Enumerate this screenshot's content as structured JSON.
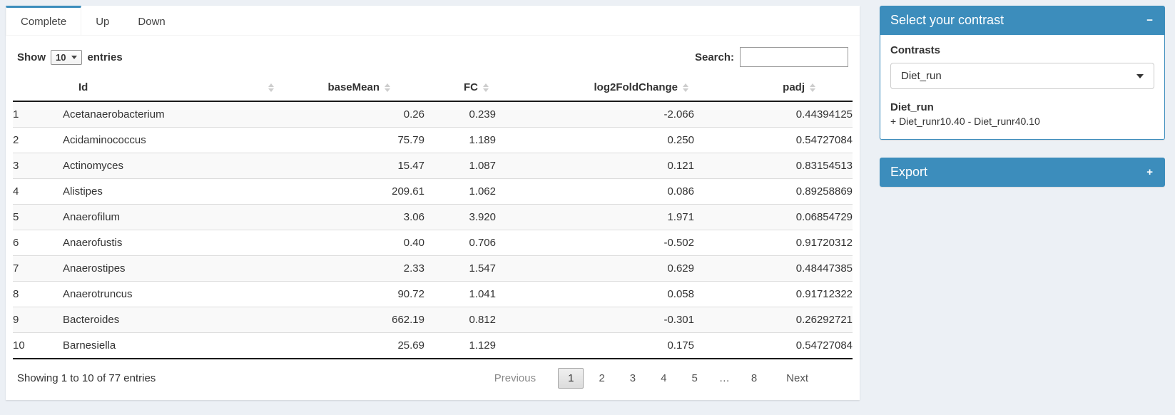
{
  "colors": {
    "accent": "#3c8dbc",
    "page_bg": "#ecf0f5"
  },
  "tabs": [
    {
      "label": "Complete",
      "active": true
    },
    {
      "label": "Up",
      "active": false
    },
    {
      "label": "Down",
      "active": false
    }
  ],
  "controls": {
    "show_label": "Show",
    "page_length": "10",
    "entries_label": "entries",
    "search_label": "Search:",
    "search_value": ""
  },
  "table": {
    "columns": [
      {
        "label": "",
        "sortable": false
      },
      {
        "label": "Id",
        "sortable": true
      },
      {
        "label": "baseMean",
        "sortable": true
      },
      {
        "label": "FC",
        "sortable": true
      },
      {
        "label": "log2FoldChange",
        "sortable": true
      },
      {
        "label": "padj",
        "sortable": true
      }
    ],
    "rows": [
      [
        "1",
        "Acetanaerobacterium",
        "0.26",
        "0.239",
        "-2.066",
        "0.44394125"
      ],
      [
        "2",
        "Acidaminococcus",
        "75.79",
        "1.189",
        "0.250",
        "0.54727084"
      ],
      [
        "3",
        "Actinomyces",
        "15.47",
        "1.087",
        "0.121",
        "0.83154513"
      ],
      [
        "4",
        "Alistipes",
        "209.61",
        "1.062",
        "0.086",
        "0.89258869"
      ],
      [
        "5",
        "Anaerofilum",
        "3.06",
        "3.920",
        "1.971",
        "0.06854729"
      ],
      [
        "6",
        "Anaerofustis",
        "0.40",
        "0.706",
        "-0.502",
        "0.91720312"
      ],
      [
        "7",
        "Anaerostipes",
        "2.33",
        "1.547",
        "0.629",
        "0.48447385"
      ],
      [
        "8",
        "Anaerotruncus",
        "90.72",
        "1.041",
        "0.058",
        "0.91712322"
      ],
      [
        "9",
        "Bacteroides",
        "662.19",
        "0.812",
        "-0.301",
        "0.26292721"
      ],
      [
        "10",
        "Barnesiella",
        "25.69",
        "1.129",
        "0.175",
        "0.54727084"
      ]
    ]
  },
  "footer": {
    "info": "Showing 1 to 10 of 77 entries",
    "pagination": {
      "buttons": [
        "Previous",
        "1",
        "2",
        "3",
        "4",
        "5",
        "…",
        "8",
        "Next"
      ],
      "current": "1"
    }
  },
  "sidebar": {
    "contrast_panel": {
      "title": "Select your contrast",
      "collapse_icon": "−",
      "contrasts_label": "Contrasts",
      "selected_contrast": "Diet_run",
      "contrast_name": "Diet_run",
      "contrast_formula": "+ Diet_runr10.40 - Diet_runr40.10"
    },
    "export_panel": {
      "title": "Export",
      "collapse_icon": "+"
    }
  }
}
